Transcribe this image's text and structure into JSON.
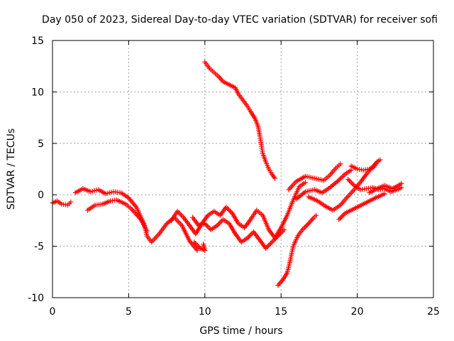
{
  "chart_data": {
    "type": "scatter",
    "title": "Day 050 of 2023, Sidereal Day-to-day VTEC variation (SDTVAR) for receiver sofi",
    "xlabel": "GPS time / hours",
    "ylabel": "SDTVAR / TECUs",
    "xlim": [
      0,
      25
    ],
    "ylim": [
      -10,
      15
    ],
    "xticks": [
      0,
      5,
      10,
      15,
      20,
      25
    ],
    "yticks": [
      -10,
      -5,
      0,
      5,
      10,
      15
    ],
    "grid": true,
    "marker": "+",
    "color": "#ff0000",
    "series": [
      {
        "name": "arc-1",
        "points": [
          [
            0,
            -0.8
          ],
          [
            0.3,
            -0.6
          ],
          [
            0.6,
            -0.9
          ],
          [
            1.0,
            -1.0
          ],
          [
            1.2,
            -0.7
          ]
        ]
      },
      {
        "name": "arc-2",
        "points": [
          [
            1.5,
            0.2
          ],
          [
            2.0,
            0.6
          ],
          [
            2.5,
            0.3
          ],
          [
            3.0,
            0.5
          ],
          [
            3.5,
            0.1
          ],
          [
            4.0,
            0.3
          ],
          [
            4.5,
            0.2
          ],
          [
            5.0,
            -0.3
          ],
          [
            5.5,
            -1.2
          ],
          [
            6.0,
            -2.8
          ],
          [
            6.2,
            -4.0
          ],
          [
            6.5,
            -4.6
          ],
          [
            7.0,
            -3.8
          ],
          [
            7.5,
            -2.8
          ],
          [
            8.0,
            -2.2
          ],
          [
            8.5,
            -3.0
          ],
          [
            9.0,
            -4.5
          ],
          [
            9.5,
            -5.4
          ]
        ]
      },
      {
        "name": "arc-3",
        "points": [
          [
            2.3,
            -1.5
          ],
          [
            2.8,
            -1.0
          ],
          [
            3.3,
            -0.9
          ],
          [
            3.8,
            -0.6
          ],
          [
            4.2,
            -0.5
          ],
          [
            4.8,
            -0.9
          ],
          [
            5.2,
            -1.4
          ],
          [
            5.8,
            -2.4
          ],
          [
            6.2,
            -3.5
          ]
        ]
      },
      {
        "name": "arc-4",
        "points": [
          [
            7.8,
            -2.5
          ],
          [
            8.2,
            -1.6
          ],
          [
            8.6,
            -2.2
          ],
          [
            9.0,
            -3.0
          ],
          [
            9.4,
            -3.8
          ],
          [
            9.8,
            -2.8
          ],
          [
            10.2,
            -2.0
          ],
          [
            10.6,
            -1.6
          ],
          [
            11.0,
            -2.0
          ],
          [
            11.4,
            -1.2
          ],
          [
            11.8,
            -1.8
          ],
          [
            12.2,
            -2.8
          ],
          [
            12.6,
            -3.2
          ],
          [
            13.0,
            -2.4
          ],
          [
            13.4,
            -1.5
          ],
          [
            13.8,
            -2.0
          ],
          [
            14.2,
            -3.4
          ],
          [
            14.6,
            -4.2
          ],
          [
            15.0,
            -3.2
          ],
          [
            15.4,
            -2.0
          ],
          [
            15.8,
            -0.5
          ],
          [
            16.2,
            0.8
          ],
          [
            16.6,
            1.2
          ]
        ]
      },
      {
        "name": "arc-5",
        "points": [
          [
            9.2,
            -2.2
          ],
          [
            9.6,
            -3.0
          ],
          [
            10.0,
            -2.8
          ],
          [
            10.4,
            -3.4
          ],
          [
            10.8,
            -3.0
          ],
          [
            11.2,
            -2.4
          ],
          [
            11.6,
            -2.8
          ],
          [
            12.0,
            -3.8
          ],
          [
            12.4,
            -4.6
          ],
          [
            12.8,
            -4.2
          ],
          [
            13.2,
            -3.6
          ],
          [
            13.6,
            -4.4
          ],
          [
            14.0,
            -5.2
          ],
          [
            14.4,
            -4.6
          ],
          [
            14.8,
            -4.0
          ],
          [
            15.2,
            -3.4
          ]
        ]
      },
      {
        "name": "arc-6",
        "points": [
          [
            9.3,
            -4.6
          ],
          [
            9.7,
            -5.2
          ],
          [
            10.0,
            -5.4
          ],
          [
            9.9,
            -4.8
          ]
        ]
      },
      {
        "name": "arc-7",
        "points": [
          [
            10.0,
            12.9
          ],
          [
            10.3,
            12.3
          ],
          [
            10.6,
            11.9
          ],
          [
            10.9,
            11.5
          ],
          [
            11.2,
            11.0
          ],
          [
            11.6,
            10.7
          ],
          [
            12.0,
            10.4
          ],
          [
            12.2,
            9.8
          ],
          [
            12.5,
            9.2
          ],
          [
            12.8,
            8.6
          ],
          [
            13.0,
            8.1
          ],
          [
            13.3,
            7.4
          ],
          [
            13.5,
            6.6
          ],
          [
            13.6,
            5.8
          ],
          [
            13.7,
            4.9
          ],
          [
            13.8,
            4.0
          ],
          [
            14.0,
            3.2
          ],
          [
            14.2,
            2.5
          ],
          [
            14.4,
            2.0
          ],
          [
            14.6,
            1.6
          ]
        ]
      },
      {
        "name": "arc-8",
        "points": [
          [
            14.8,
            -8.8
          ],
          [
            15.1,
            -8.3
          ],
          [
            15.4,
            -7.6
          ],
          [
            15.6,
            -6.4
          ],
          [
            15.8,
            -5.0
          ],
          [
            16.1,
            -4.0
          ],
          [
            16.4,
            -3.4
          ],
          [
            16.8,
            -2.8
          ],
          [
            17.1,
            -2.3
          ],
          [
            17.3,
            -2.0
          ]
        ]
      },
      {
        "name": "arc-9",
        "points": [
          [
            15.5,
            0.5
          ],
          [
            16.0,
            1.3
          ],
          [
            16.6,
            1.8
          ],
          [
            17.2,
            1.6
          ],
          [
            17.8,
            1.4
          ],
          [
            18.2,
            1.9
          ],
          [
            18.6,
            2.6
          ],
          [
            18.9,
            3.0
          ]
        ]
      },
      {
        "name": "arc-10",
        "points": [
          [
            16.0,
            -0.4
          ],
          [
            16.6,
            0.3
          ],
          [
            17.2,
            0.5
          ],
          [
            17.7,
            0.2
          ],
          [
            18.2,
            0.7
          ],
          [
            18.7,
            1.3
          ],
          [
            19.2,
            2.0
          ],
          [
            19.6,
            2.4
          ]
        ]
      },
      {
        "name": "arc-11",
        "points": [
          [
            16.8,
            -0.2
          ],
          [
            17.4,
            -0.6
          ],
          [
            17.9,
            -1.1
          ],
          [
            18.4,
            -1.5
          ],
          [
            18.9,
            -1.0
          ],
          [
            19.3,
            -0.3
          ],
          [
            19.8,
            0.5
          ],
          [
            20.2,
            1.2
          ],
          [
            20.6,
            2.0
          ],
          [
            21.0,
            2.7
          ],
          [
            21.3,
            3.2
          ],
          [
            21.5,
            3.4
          ]
        ]
      },
      {
        "name": "arc-12",
        "points": [
          [
            18.8,
            -2.4
          ],
          [
            19.2,
            -1.8
          ],
          [
            19.6,
            -1.5
          ],
          [
            20.0,
            -1.2
          ],
          [
            20.4,
            -0.9
          ],
          [
            20.8,
            -0.6
          ],
          [
            21.2,
            -0.3
          ],
          [
            21.5,
            -0.1
          ],
          [
            21.8,
            0.1
          ]
        ]
      },
      {
        "name": "arc-13",
        "points": [
          [
            19.4,
            1.5
          ],
          [
            19.8,
            0.9
          ],
          [
            20.2,
            0.5
          ],
          [
            20.6,
            0.6
          ],
          [
            21.0,
            0.7
          ],
          [
            21.4,
            0.5
          ],
          [
            21.8,
            0.6
          ],
          [
            22.2,
            0.3
          ],
          [
            22.6,
            0.5
          ],
          [
            22.9,
            0.7
          ]
        ]
      },
      {
        "name": "arc-14",
        "points": [
          [
            19.6,
            2.8
          ],
          [
            20.0,
            2.5
          ],
          [
            20.4,
            2.4
          ],
          [
            20.8,
            2.5
          ],
          [
            21.1,
            2.7
          ],
          [
            21.3,
            3.2
          ]
        ]
      },
      {
        "name": "arc-15",
        "points": [
          [
            20.8,
            0.2
          ],
          [
            21.3,
            0.6
          ],
          [
            21.8,
            0.9
          ],
          [
            22.3,
            0.6
          ],
          [
            22.7,
            0.9
          ],
          [
            22.9,
            1.1
          ]
        ]
      }
    ]
  }
}
